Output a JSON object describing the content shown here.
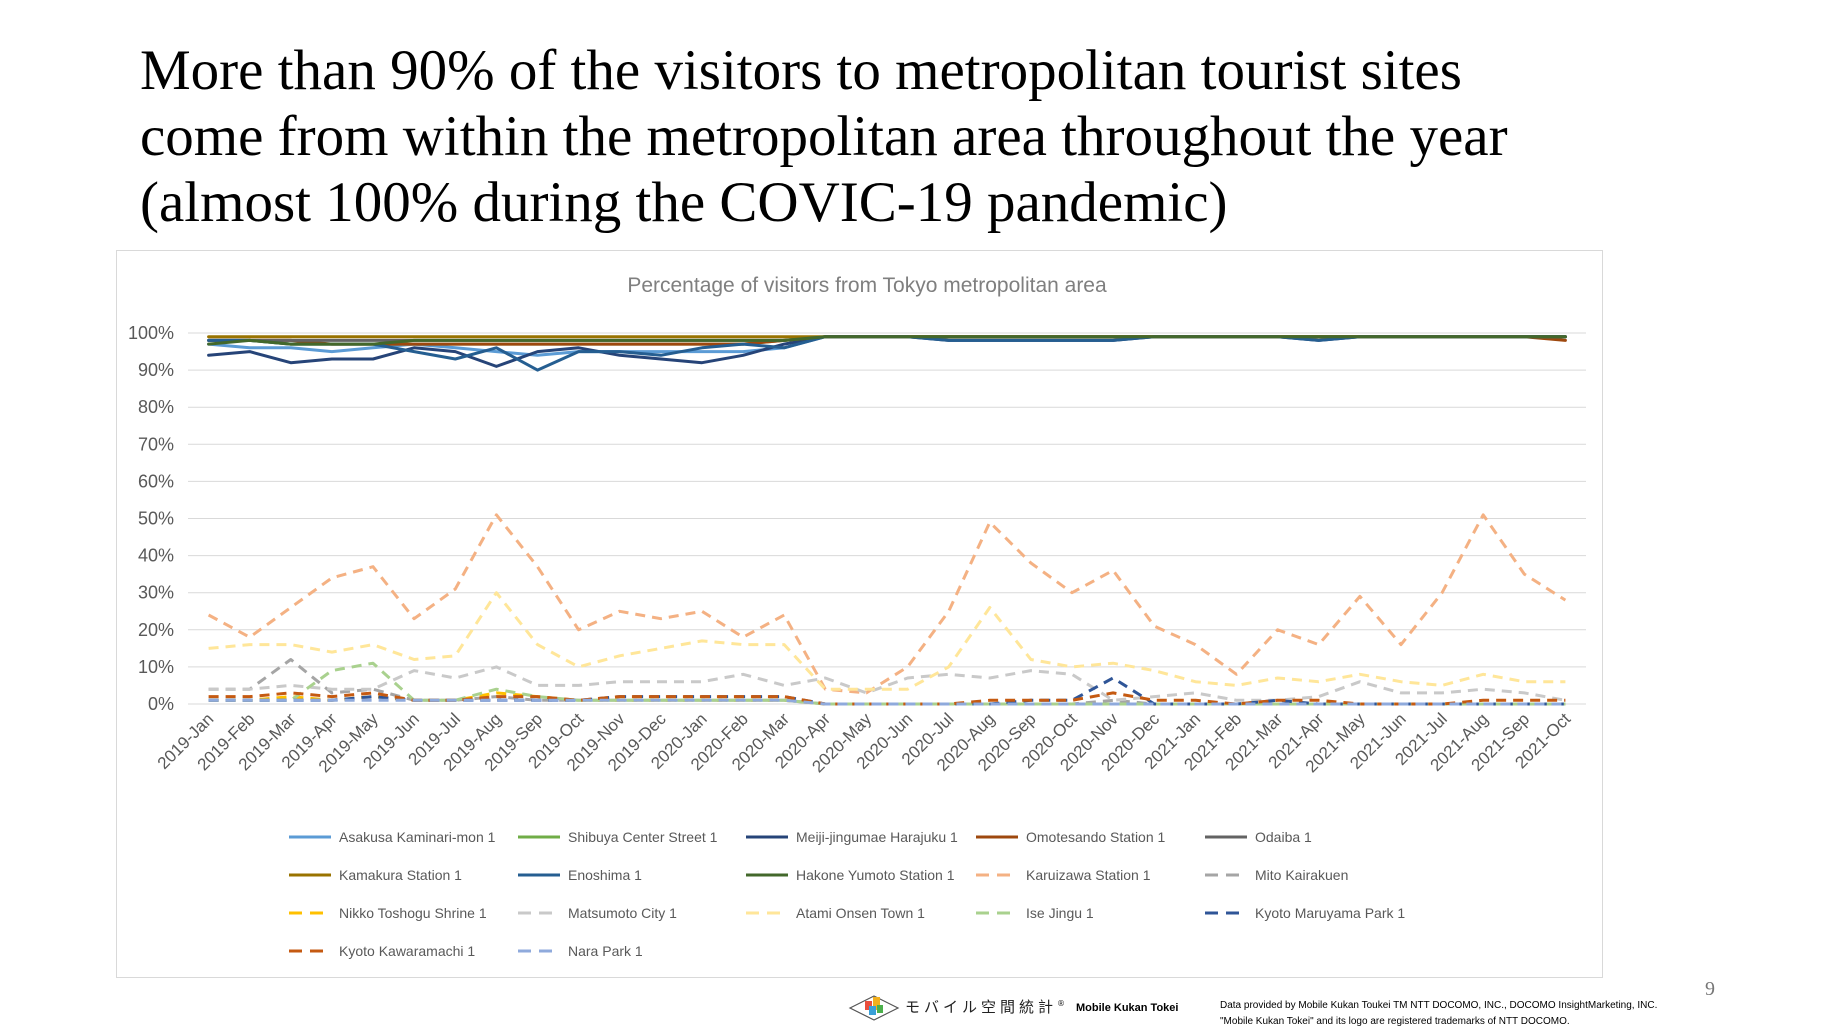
{
  "slide": {
    "title_lines": [
      "More than 90% of the visitors to metropolitan tourist sites",
      "come from within the metropolitan area throughout the year",
      "(almost 100% during the COVIC-19 pandemic)"
    ],
    "page_number": "9"
  },
  "footer": {
    "logo_text_jp": "モバイル空間統計",
    "logo_mark": "®",
    "brand": "Mobile Kukan Tokei",
    "credit_lines": [
      "Data provided by Mobile Kukan Toukei TM NTT DOCOMO, INC., DOCOMO InsightMarketing, INC.",
      "\"Mobile Kukan Tokei\" and its logo are registered trademarks of NTT DOCOMO."
    ]
  },
  "chart_data": {
    "type": "line",
    "title": "Percentage of visitors from Tokyo metropolitan area",
    "ylim": [
      0,
      100
    ],
    "y_ticks": [
      "0%",
      "10%",
      "20%",
      "30%",
      "40%",
      "50%",
      "60%",
      "70%",
      "80%",
      "90%",
      "100%"
    ],
    "grid": true,
    "legend_position": "bottom",
    "categories": [
      "2019-Jan",
      "2019-Feb",
      "2019-Mar",
      "2019-Apr",
      "2019-May",
      "2019-Jun",
      "2019-Jul",
      "2019-Aug",
      "2019-Sep",
      "2019-Oct",
      "2019-Nov",
      "2019-Dec",
      "2020-Jan",
      "2020-Feb",
      "2020-Mar",
      "2020-Apr",
      "2020-May",
      "2020-Jun",
      "2020-Jul",
      "2020-Aug",
      "2020-Sep",
      "2020-Oct",
      "2020-Nov",
      "2020-Dec",
      "2021-Jan",
      "2021-Feb",
      "2021-Mar",
      "2021-Apr",
      "2021-May",
      "2021-Jun",
      "2021-Jul",
      "2021-Aug",
      "2021-Sep",
      "2021-Oct"
    ],
    "series": [
      {
        "name": "Asakusa Kaminari-mon 1",
        "color": "#5b9bd5",
        "dashed": false,
        "values": [
          97,
          96,
          96,
          95,
          96,
          97,
          96,
          95,
          94,
          95,
          95,
          95,
          95,
          95,
          96,
          99,
          99,
          99,
          99,
          99,
          99,
          99,
          99,
          99,
          99,
          99,
          99,
          99,
          99,
          99,
          99,
          99,
          99,
          99
        ]
      },
      {
        "name": "Shibuya Center Street 1",
        "color": "#70ad47",
        "dashed": false,
        "values": [
          98,
          98,
          97,
          97,
          97,
          97,
          97,
          97,
          97,
          97,
          97,
          97,
          97,
          97,
          98,
          99,
          99,
          99,
          99,
          99,
          99,
          99,
          99,
          99,
          99,
          99,
          99,
          99,
          99,
          99,
          99,
          99,
          99,
          99
        ]
      },
      {
        "name": "Meiji-jingumae Harajuku 1",
        "color": "#264478",
        "dashed": false,
        "values": [
          94,
          95,
          92,
          93,
          93,
          96,
          95,
          91,
          95,
          96,
          94,
          93,
          92,
          94,
          97,
          99,
          99,
          99,
          98,
          98,
          98,
          98,
          98,
          99,
          99,
          99,
          99,
          98,
          99,
          99,
          99,
          99,
          99,
          99
        ]
      },
      {
        "name": "Omotesando Station 1",
        "color": "#9e480e",
        "dashed": false,
        "values": [
          98,
          98,
          98,
          97,
          97,
          97,
          97,
          97,
          97,
          97,
          97,
          97,
          97,
          97,
          98,
          99,
          99,
          99,
          99,
          99,
          99,
          99,
          99,
          99,
          99,
          99,
          99,
          99,
          99,
          99,
          99,
          99,
          99,
          98
        ]
      },
      {
        "name": "Odaiba 1",
        "color": "#636363",
        "dashed": false,
        "values": [
          98,
          98,
          98,
          98,
          98,
          98,
          98,
          98,
          98,
          98,
          98,
          98,
          98,
          98,
          98,
          99,
          99,
          99,
          99,
          99,
          99,
          99,
          99,
          99,
          99,
          99,
          99,
          99,
          99,
          99,
          99,
          99,
          99,
          99
        ]
      },
      {
        "name": "Kamakura Station 1",
        "color": "#997300",
        "dashed": false,
        "values": [
          99,
          99,
          99,
          99,
          99,
          99,
          99,
          99,
          99,
          99,
          99,
          99,
          99,
          99,
          99,
          99,
          99,
          99,
          99,
          99,
          99,
          99,
          99,
          99,
          99,
          99,
          99,
          99,
          99,
          99,
          99,
          99,
          99,
          99
        ]
      },
      {
        "name": "Enoshima 1",
        "color": "#255e91",
        "dashed": false,
        "values": [
          98,
          98,
          97,
          97,
          97,
          95,
          93,
          96,
          90,
          95,
          95,
          94,
          96,
          97,
          96,
          99,
          99,
          99,
          98,
          98,
          98,
          98,
          98,
          99,
          99,
          99,
          99,
          98,
          99,
          99,
          99,
          99,
          99,
          99
        ]
      },
      {
        "name": "Hakone Yumoto Station 1",
        "color": "#43682b",
        "dashed": false,
        "values": [
          97,
          98,
          97,
          97,
          97,
          98,
          98,
          98,
          98,
          98,
          98,
          98,
          98,
          98,
          98,
          99,
          99,
          99,
          99,
          99,
          99,
          99,
          99,
          99,
          99,
          99,
          99,
          99,
          99,
          99,
          99,
          99,
          99,
          99
        ]
      },
      {
        "name": "Karuizawa Station 1",
        "color": "#f4b183",
        "dashed": true,
        "values": [
          24,
          18,
          26,
          34,
          37,
          23,
          31,
          51,
          37,
          20,
          25,
          23,
          25,
          18,
          24,
          4,
          3,
          10,
          25,
          49,
          38,
          30,
          36,
          21,
          16,
          8,
          20,
          16,
          29,
          16,
          30,
          51,
          35,
          28
        ]
      },
      {
        "name": "Mito Kairakuen",
        "color": "#a5a5a5",
        "dashed": true,
        "values": [
          4,
          4,
          12,
          3,
          4,
          1,
          1,
          2,
          1,
          1,
          1,
          1,
          1,
          1,
          1,
          0,
          0,
          0,
          0,
          0,
          0,
          0,
          1,
          0,
          0,
          0,
          0,
          0,
          0,
          0,
          0,
          0,
          0,
          0
        ]
      },
      {
        "name": "Nikko Toshogu Shrine 1",
        "color": "#ffc000",
        "dashed": true,
        "values": [
          1,
          1,
          2,
          1,
          2,
          1,
          1,
          3,
          2,
          1,
          1,
          1,
          1,
          1,
          1,
          0,
          0,
          0,
          0,
          0,
          0,
          0,
          0,
          0,
          0,
          0,
          0,
          0,
          0,
          0,
          0,
          0,
          0,
          0
        ]
      },
      {
        "name": "Matsumoto City 1",
        "color": "#c9c9c9",
        "dashed": true,
        "values": [
          4,
          4,
          5,
          4,
          4,
          9,
          7,
          10,
          5,
          5,
          6,
          6,
          6,
          8,
          5,
          7,
          3,
          7,
          8,
          7,
          9,
          8,
          1,
          2,
          3,
          1,
          1,
          2,
          6,
          3,
          3,
          4,
          3,
          1
        ]
      },
      {
        "name": "Atami Onsen Town 1",
        "color": "#ffe699",
        "dashed": true,
        "values": [
          15,
          16,
          16,
          14,
          16,
          12,
          13,
          30,
          16,
          10,
          13,
          15,
          17,
          16,
          16,
          4,
          4,
          4,
          10,
          26,
          12,
          10,
          11,
          9,
          6,
          5,
          7,
          6,
          8,
          6,
          5,
          8,
          6,
          6
        ]
      },
      {
        "name": "Ise Jingu 1",
        "color": "#a9d18e",
        "dashed": true,
        "values": [
          1,
          1,
          1,
          9,
          11,
          1,
          1,
          4,
          2,
          1,
          1,
          1,
          1,
          1,
          1,
          0,
          0,
          0,
          0,
          0,
          0,
          0,
          0,
          0,
          0,
          0,
          0,
          0,
          0,
          0,
          0,
          0,
          0,
          0
        ]
      },
      {
        "name": "Kyoto Maruyama Park 1",
        "color": "#2f5597",
        "dashed": true,
        "values": [
          1,
          1,
          1,
          1,
          2,
          1,
          1,
          1,
          1,
          1,
          2,
          2,
          2,
          2,
          2,
          0,
          0,
          0,
          0,
          0,
          1,
          1,
          7,
          0,
          0,
          0,
          1,
          0,
          0,
          0,
          0,
          0,
          0,
          0
        ]
      },
      {
        "name": "Kyoto Kawaramachi 1",
        "color": "#c55a11",
        "dashed": true,
        "values": [
          2,
          2,
          3,
          2,
          3,
          1,
          1,
          2,
          2,
          1,
          2,
          2,
          2,
          2,
          2,
          0,
          0,
          0,
          0,
          1,
          1,
          1,
          3,
          1,
          1,
          0,
          1,
          1,
          0,
          0,
          0,
          1,
          1,
          1
        ]
      },
      {
        "name": "Nara Park 1",
        "color": "#8faadc",
        "dashed": true,
        "values": [
          1,
          1,
          1,
          1,
          1,
          1,
          1,
          1,
          1,
          1,
          1,
          1,
          1,
          1,
          1,
          0,
          0,
          0,
          0,
          0,
          0,
          0,
          0,
          0,
          0,
          0,
          0,
          0,
          0,
          0,
          0,
          0,
          0,
          0
        ]
      }
    ]
  }
}
